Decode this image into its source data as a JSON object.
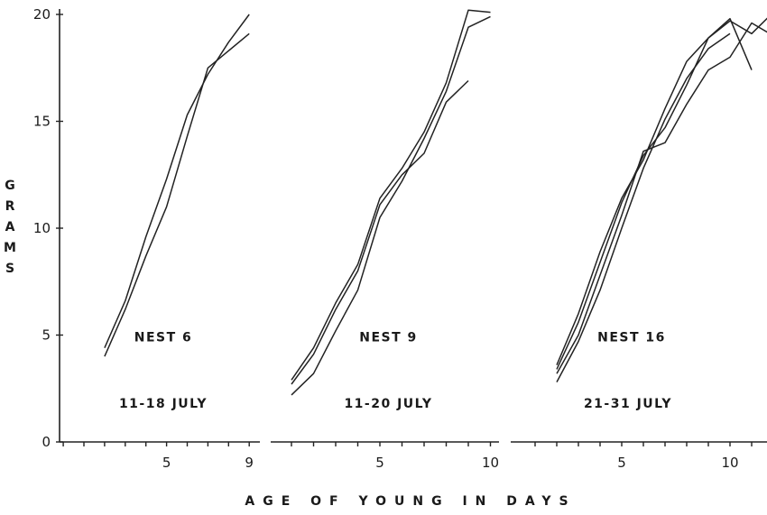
{
  "chart_data": {
    "type": "line",
    "title": "",
    "ylabel": "GRAMS",
    "xlabel": "AGE OF YOUNG IN DAYS",
    "ylim": [
      0,
      20
    ],
    "yticks": [
      0,
      5,
      10,
      15,
      20
    ],
    "grid": false,
    "panels": [
      {
        "name": "NEST 6",
        "dates": "11-18 JULY",
        "xlim": [
          0,
          9
        ],
        "xticks": [
          5,
          9
        ],
        "series": [
          {
            "x": [
              2,
              3,
              4,
              5,
              6,
              7,
              8,
              9
            ],
            "y": [
              4.0,
              6.2,
              8.7,
              11.0,
              14.3,
              17.5,
              18.3,
              19.1
            ]
          },
          {
            "x": [
              2,
              3,
              4,
              5,
              6,
              7,
              8,
              9
            ],
            "y": [
              4.4,
              6.6,
              9.6,
              12.3,
              15.3,
              17.2,
              18.7,
              20.0
            ]
          }
        ]
      },
      {
        "name": "NEST 9",
        "dates": "11-20 JULY",
        "xlim": [
          1,
          10
        ],
        "xticks": [
          5,
          10
        ],
        "series": [
          {
            "x": [
              1,
              2,
              3,
              4,
              5,
              6,
              7,
              8,
              9
            ],
            "y": [
              2.7,
              4.1,
              6.2,
              8.0,
              11.1,
              12.5,
              13.5,
              15.9,
              16.9
            ]
          },
          {
            "x": [
              1,
              2,
              3,
              4,
              5,
              6,
              7,
              8,
              9,
              10
            ],
            "y": [
              2.9,
              4.4,
              6.5,
              8.3,
              11.4,
              12.8,
              14.5,
              16.8,
              20.2,
              20.1
            ]
          },
          {
            "x": [
              1,
              2,
              3,
              4,
              5,
              6,
              7,
              8,
              9,
              10
            ],
            "y": [
              2.2,
              3.2,
              5.2,
              7.1,
              10.5,
              12.2,
              14.2,
              16.4,
              19.4,
              19.9
            ]
          }
        ]
      },
      {
        "name": "NEST 16",
        "dates": "21-31 JULY",
        "xlim": [
          1,
          12
        ],
        "xticks": [
          5,
          10
        ],
        "series": [
          {
            "x": [
              2,
              3,
              4,
              5,
              6,
              7,
              8,
              9,
              10,
              11,
              12
            ],
            "y": [
              3.4,
              5.6,
              8.4,
              11.2,
              13.4,
              14.7,
              16.7,
              18.9,
              19.7,
              19.1,
              20.1
            ]
          },
          {
            "x": [
              2,
              3,
              4,
              5,
              6,
              7,
              8,
              9,
              10,
              11,
              12
            ],
            "y": [
              3.2,
              5.0,
              7.8,
              10.6,
              13.6,
              14.0,
              15.8,
              17.4,
              18.0,
              19.6,
              19.0
            ]
          },
          {
            "x": [
              2,
              3,
              4,
              5,
              6,
              7,
              8,
              9,
              10,
              11
            ],
            "y": [
              3.6,
              6.0,
              8.9,
              11.4,
              13.2,
              15.6,
              17.8,
              18.9,
              19.8,
              17.4
            ]
          },
          {
            "x": [
              2,
              3,
              4,
              5,
              6,
              7,
              8,
              9,
              10
            ],
            "y": [
              2.8,
              4.7,
              7.1,
              10.0,
              12.8,
              15.1,
              17.0,
              18.4,
              19.1
            ]
          }
        ]
      }
    ]
  }
}
